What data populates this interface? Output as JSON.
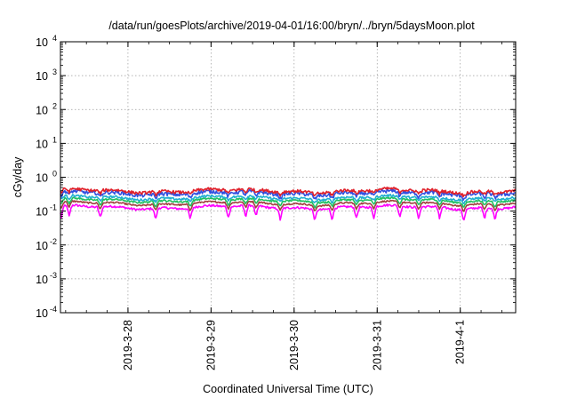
{
  "chart_data": {
    "type": "line",
    "title": "/data/run/goesPlots/archive/2019-04-01/16:00/bryn/../bryn/5daysMoon.plot",
    "xlabel": "Coordinated Universal Time (UTC)",
    "ylabel": "cGy/day",
    "yscale": "log",
    "ylim": [
      0.0001,
      10000
    ],
    "y_ticks": [
      {
        "value": 0.0001,
        "base": "10",
        "exp": "-4"
      },
      {
        "value": 0.001,
        "base": "10",
        "exp": "-3"
      },
      {
        "value": 0.01,
        "base": "10",
        "exp": "-2"
      },
      {
        "value": 0.1,
        "base": "10",
        "exp": "-1"
      },
      {
        "value": 1,
        "base": "10",
        "exp": "0"
      },
      {
        "value": 10,
        "base": "10",
        "exp": "1"
      },
      {
        "value": 100,
        "base": "10",
        "exp": "2"
      },
      {
        "value": 1000,
        "base": "10",
        "exp": "3"
      },
      {
        "value": 10000,
        "base": "10",
        "exp": "4"
      }
    ],
    "xlim": [
      "2019-03-27 04:30",
      "2019-04-01 16:00"
    ],
    "x_ticks": [
      {
        "value": "2019-03-28 00:00",
        "label": "2019-3-28"
      },
      {
        "value": "2019-03-29 00:00",
        "label": "2019-3-29"
      },
      {
        "value": "2019-03-30 00:00",
        "label": "2019-3-30"
      },
      {
        "value": "2019-03-31 00:00",
        "label": "2019-3-31"
      },
      {
        "value": "2019-04-01 00:00",
        "label": "2019-4-1"
      }
    ],
    "grid": true,
    "series": [
      {
        "color": "#e0202a",
        "base": 0.4,
        "noise": 0.2,
        "dip_depth": 0.2
      },
      {
        "color": "#3050e0",
        "base": 0.34,
        "noise": 0.25,
        "dip_depth": 0.25
      },
      {
        "color": "#20b0d0",
        "base": 0.25,
        "noise": 0.15,
        "dip_depth": 0.2
      },
      {
        "color": "#20c060",
        "base": 0.21,
        "noise": 0.12,
        "dip_depth": 0.3
      },
      {
        "color": "#a04040",
        "base": 0.17,
        "noise": 0.1,
        "dip_depth": 0.35
      },
      {
        "color": "#ff00ff",
        "base": 0.13,
        "noise": 0.15,
        "dip_depth": 0.55
      }
    ],
    "dip_times": [
      "2019-03-27 04:45",
      "2019-03-27 07:00",
      "2019-03-27 16:00",
      "2019-03-28 08:00",
      "2019-03-28 18:00",
      "2019-03-29 05:00",
      "2019-03-29 10:00",
      "2019-03-29 13:00",
      "2019-03-29 20:00",
      "2019-03-30 06:00",
      "2019-03-30 11:00",
      "2019-03-30 18:00",
      "2019-03-30 23:00",
      "2019-03-31 06:30",
      "2019-03-31 12:00",
      "2019-03-31 18:00",
      "2019-04-01 01:00",
      "2019-04-01 07:00",
      "2019-04-01 10:00"
    ]
  }
}
